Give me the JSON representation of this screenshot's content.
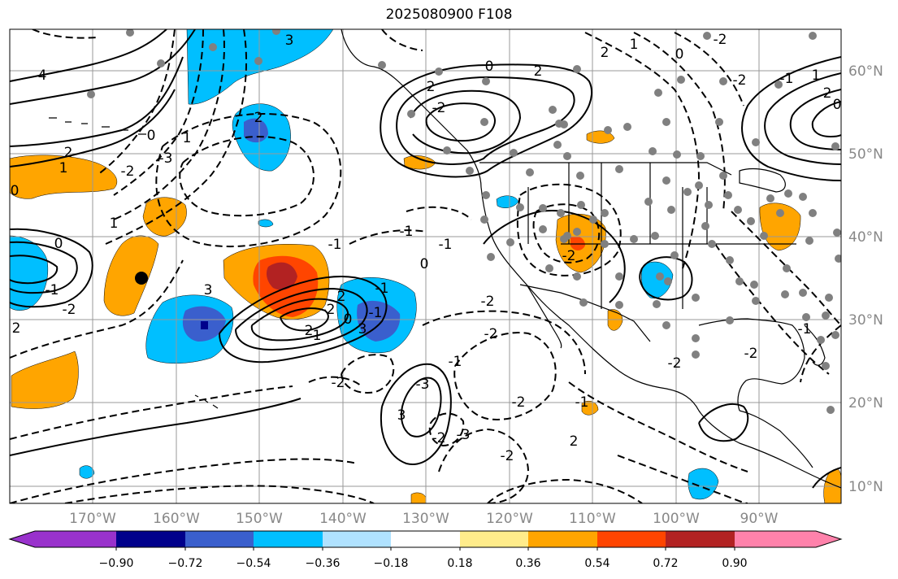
{
  "title": "2025080900 F108",
  "lon_labels": [
    "170°W",
    "160°W",
    "150°W",
    "140°W",
    "130°W",
    "120°W",
    "110°W",
    "100°W",
    "90°W"
  ],
  "lat_labels": [
    "60°N",
    "50°N",
    "40°N",
    "30°N",
    "20°N",
    "10°N"
  ],
  "colorbar": {
    "ticks": [
      "−0.90",
      "−0.72",
      "−0.54",
      "−0.36",
      "−0.18",
      "0.18",
      "0.36",
      "0.54",
      "0.72",
      "0.90"
    ],
    "colors": [
      "#9932CC",
      "#00008B",
      "#3A5FCD",
      "#00BFFF",
      "#B0E2FF",
      "#FFFFFF",
      "#FFEC8B",
      "#FFA500",
      "#FF4500",
      "#B22222",
      "#FF82AB"
    ]
  },
  "contour_labels": [
    "4",
    "2",
    "1",
    "0",
    "-2",
    "-3",
    "3",
    "2",
    "1",
    "0",
    "-1",
    "-2",
    "2",
    "3",
    "-2",
    "1",
    "0",
    "-1",
    "2",
    "-2",
    "0",
    "2",
    "1",
    "0",
    "-2",
    "-1",
    "-2",
    "-3",
    "-2",
    "3",
    "-2",
    "-3",
    "-2",
    "1",
    "-1",
    "2",
    "0",
    "-2",
    "-2",
    "-1",
    "-2",
    "-2",
    "-1",
    "2",
    "-2",
    "-1",
    "2",
    "3",
    "-1",
    "-2",
    "2",
    "-1",
    "0",
    "-1",
    "2",
    "1",
    "0"
  ]
}
